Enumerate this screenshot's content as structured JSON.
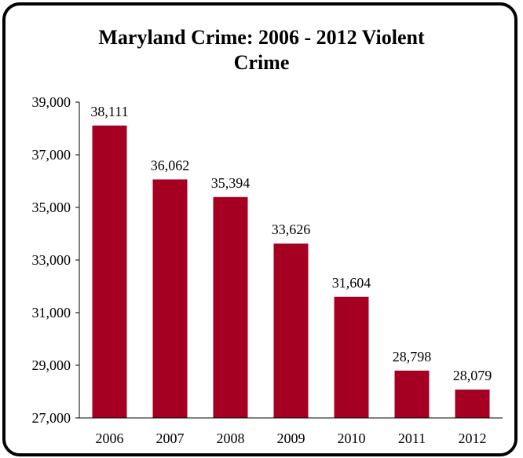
{
  "chart_data": {
    "type": "bar",
    "title_lines": [
      "Maryland Crime: 2006 - 2012 Violent",
      "Crime"
    ],
    "title": "Maryland Crime: 2006 - 2012 Violent Crime",
    "categories": [
      "2006",
      "2007",
      "2008",
      "2009",
      "2010",
      "2011",
      "2012"
    ],
    "values": [
      38111,
      36062,
      35394,
      33626,
      31604,
      28798,
      28079
    ],
    "data_labels": [
      "38,111",
      "36,062",
      "35,394",
      "33,626",
      "31,604",
      "28,798",
      "28,079"
    ],
    "ylim": [
      27000,
      39000
    ],
    "yticks": [
      27000,
      29000,
      31000,
      33000,
      35000,
      37000,
      39000
    ],
    "ytick_labels": [
      "27,000",
      "29,000",
      "31,000",
      "33,000",
      "35,000",
      "37,000",
      "39,000"
    ],
    "xlabel": "",
    "ylabel": "",
    "grid": false,
    "legend": "none",
    "bar_color": "#A50021"
  }
}
